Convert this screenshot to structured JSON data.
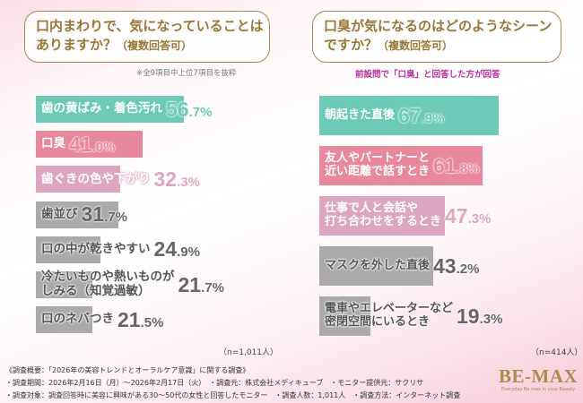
{
  "left": {
    "question_line1": "口内まわりで、気になっていることは",
    "question_line2": "ありますか？",
    "question_note": "（複数回答可）",
    "note": "※全9項目中上位7項目を抜粋",
    "sample": "（n=1,011人）"
  },
  "right": {
    "question_line1": "口臭が気になるのはどのようなシーン",
    "question_line2": "ですか？",
    "question_note": "（複数回答可）",
    "note": "前設問で「口臭」と回答した方が回答",
    "sample": "（n=414人）"
  },
  "colors": {
    "teal": "#6ccab6",
    "pink": "#e8889d",
    "lightpink": "#dca6c0",
    "gray": "#aaaaaa",
    "gray_text": "#666666",
    "title": "#9a7636",
    "subtitle": "#b82fa0"
  },
  "chart_data": [
    {
      "type": "bar",
      "orientation": "horizontal",
      "unit": "%",
      "categories": [
        "歯の黄ばみ・着色汚れ",
        "口臭",
        "歯ぐきの色や下がり",
        "歯並び",
        "口の中が乾きやすい",
        "冷たいものや熱いものが\nしみる（知覚過敏）",
        "口のネバつき"
      ],
      "values": [
        56.7,
        41.0,
        32.3,
        31.7,
        24.9,
        21.7,
        21.5
      ],
      "bar_colors": [
        "teal",
        "pink",
        "lightpink",
        "gray",
        "gray",
        "gray",
        "gray"
      ]
    },
    {
      "type": "bar",
      "orientation": "horizontal",
      "unit": "%",
      "categories": [
        "朝起きた直後",
        "友人やパートナーと\n近い距離で話すとき",
        "仕事で人と会話や\n打ち合わせをするとき",
        "マスクを外した直後",
        "電車やエレベーターなど\n密閉空間にいるとき"
      ],
      "values": [
        67.9,
        61.8,
        47.3,
        43.2,
        19.3
      ],
      "bar_colors": [
        "teal",
        "pink",
        "lightpink",
        "gray",
        "gray"
      ]
    }
  ],
  "footer": {
    "line1": "《調査概要：「2026年の美容トレンドとオーラルケア意識」に関する調査》",
    "line2": "・調査期間：2026年2月16日（月）～2026年2月17日（火）　・調査元：株式会社メディキューブ　・モニター提供元：サクリサ",
    "line3": "・調査対象：調査回答時に美容に興味がある30～50代の女性と回答したモニター　・調査人数：1,011人　・調査方法：インターネット調査"
  },
  "logo": {
    "name": "BE-MAX",
    "tagline": "Everyday Be max in your Beauty"
  }
}
